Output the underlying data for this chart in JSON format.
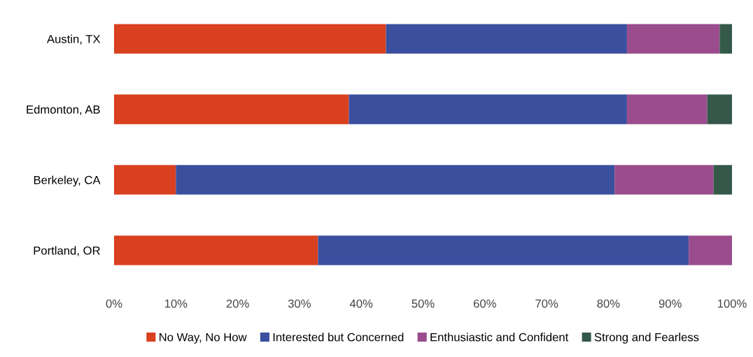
{
  "chart_data": {
    "type": "bar",
    "orientation": "horizontal",
    "stacked": true,
    "categories": [
      "Austin, TX",
      "Edmonton, AB",
      "Berkeley, CA",
      "Portland, OR"
    ],
    "series": [
      {
        "name": "No Way, No How",
        "color": "#d9401f",
        "values": [
          44,
          38,
          10,
          33
        ]
      },
      {
        "name": "Interested but Concerned",
        "color": "#3a4f9e",
        "values": [
          39,
          45,
          71,
          60
        ]
      },
      {
        "name": "Enthusiastic and Confident",
        "color": "#9a4c8c",
        "values": [
          15,
          13,
          16,
          7
        ]
      },
      {
        "name": "Strong and Fearless",
        "color": "#34594a",
        "values": [
          2,
          4,
          3,
          0
        ]
      }
    ],
    "xlim": [
      0,
      100
    ],
    "xticks": [
      {
        "value": 0,
        "label": "0%"
      },
      {
        "value": 10,
        "label": "10%"
      },
      {
        "value": 20,
        "label": "20%"
      },
      {
        "value": 30,
        "label": "30%"
      },
      {
        "value": 40,
        "label": "40%"
      },
      {
        "value": 50,
        "label": "50%"
      },
      {
        "value": 60,
        "label": "60%"
      },
      {
        "value": 70,
        "label": "70%"
      },
      {
        "value": 80,
        "label": "80%"
      },
      {
        "value": 90,
        "label": "90%"
      },
      {
        "value": 100,
        "label": "100%"
      }
    ],
    "grid": false,
    "legend": "bottom"
  }
}
